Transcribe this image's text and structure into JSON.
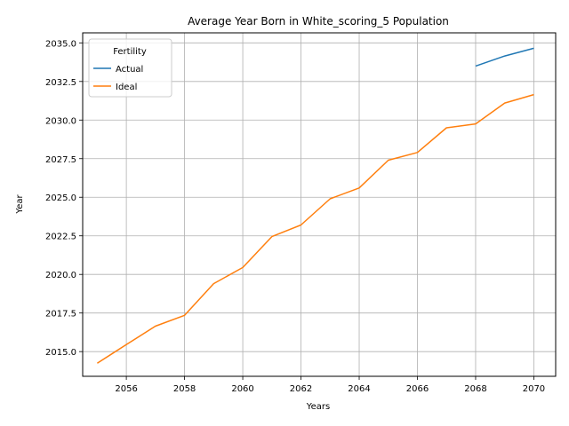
{
  "chart_data": {
    "type": "line",
    "title": "Average Year Born in White_scoring_5 Population",
    "xlabel": "Years",
    "ylabel": "Year",
    "xlim": [
      2054.5,
      2070.75
    ],
    "ylim": [
      2013.4,
      2035.65
    ],
    "xticks": [
      2056,
      2058,
      2060,
      2062,
      2064,
      2066,
      2068,
      2070
    ],
    "yticks": [
      2015.0,
      2017.5,
      2020.0,
      2022.5,
      2025.0,
      2027.5,
      2030.0,
      2032.5,
      2035.0
    ],
    "ytick_labels": [
      "2015.0",
      "2017.5",
      "2020.0",
      "2022.5",
      "2025.0",
      "2027.5",
      "2030.0",
      "2032.5",
      "2035.0"
    ],
    "grid": true,
    "legend": {
      "title": "Fertility",
      "placement": "top-left"
    },
    "series": [
      {
        "name": "Actual",
        "color": "#1f77b4",
        "x": [
          2068,
          2069,
          2070
        ],
        "y": [
          2033.5,
          2034.15,
          2034.65
        ]
      },
      {
        "name": "Ideal",
        "color": "#ff7f0e",
        "x": [
          2055,
          2056,
          2057,
          2058,
          2059,
          2060,
          2061,
          2062,
          2063,
          2064,
          2065,
          2066,
          2067,
          2068,
          2069,
          2070
        ],
        "y": [
          2014.25,
          2015.45,
          2016.65,
          2017.35,
          2019.4,
          2020.45,
          2022.45,
          2023.2,
          2024.9,
          2025.6,
          2027.4,
          2027.9,
          2029.5,
          2029.75,
          2031.1,
          2031.65
        ]
      }
    ]
  }
}
